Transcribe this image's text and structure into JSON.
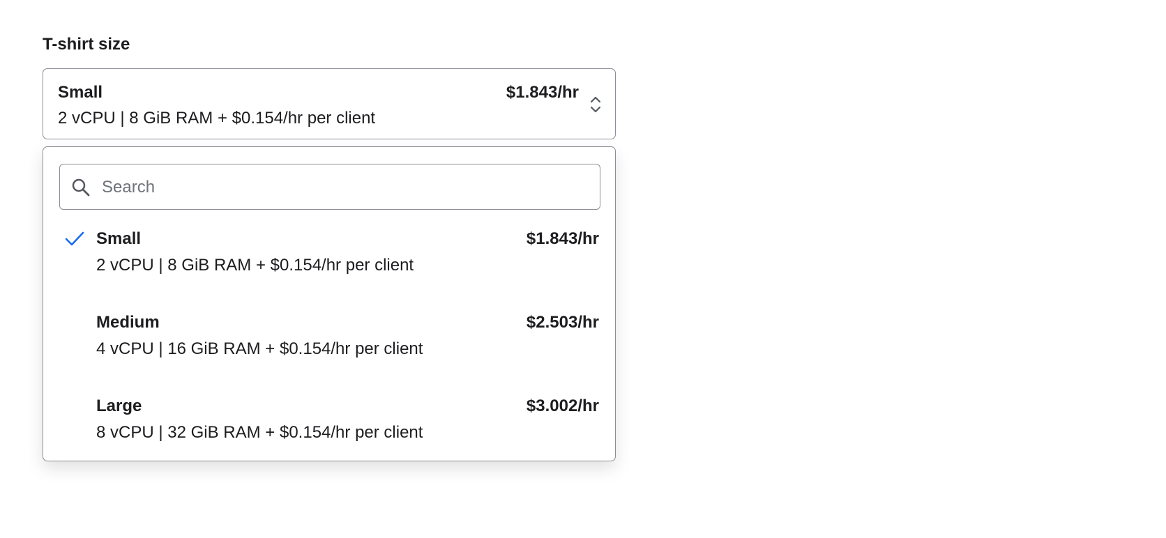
{
  "field": {
    "label": "T-shirt size",
    "selected": {
      "name": "Small",
      "price": "$1.843/hr",
      "desc": "2 vCPU | 8 GiB RAM + $0.154/hr per client"
    }
  },
  "dropdown": {
    "search_placeholder": "Search",
    "search_value": "",
    "accent_color": "#1a6cf0",
    "options": [
      {
        "name": "Small",
        "price": "$1.843/hr",
        "desc": "2 vCPU | 8 GiB RAM + $0.154/hr per client",
        "selected": true
      },
      {
        "name": "Medium",
        "price": "$2.503/hr",
        "desc": "4 vCPU | 16 GiB RAM + $0.154/hr per client",
        "selected": false
      },
      {
        "name": "Large",
        "price": "$3.002/hr",
        "desc": "8 vCPU | 32 GiB RAM + $0.154/hr per client",
        "selected": false
      }
    ]
  }
}
